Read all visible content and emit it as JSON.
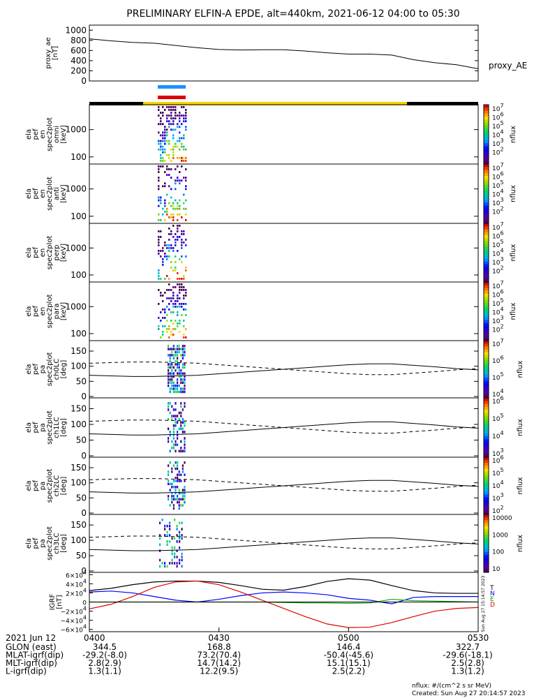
{
  "title": "PRELIMINARY ELFIN-A EPDE, alt=440km, 2021-06-12 04:00 to 05:30",
  "colors": {
    "blue_bar": "#1e90ff",
    "red_bar": "#dd0000",
    "science_yellow": "#f5d300",
    "axis": "#000000"
  },
  "chart_data": [
    {
      "type": "line",
      "ylabel_lines": [
        "proxy_ae",
        "[nT]"
      ],
      "series_label": "proxy_AE",
      "yticks": [
        "1000",
        "800",
        "600",
        "400",
        "200",
        "0"
      ],
      "ylim": [
        0,
        1100
      ],
      "x_minutes": [
        0,
        5,
        10,
        15,
        20,
        25,
        30,
        35,
        40,
        45,
        50,
        55,
        60,
        65,
        70,
        75,
        80,
        85,
        90
      ],
      "values": [
        830,
        790,
        760,
        745,
        700,
        655,
        620,
        610,
        615,
        615,
        590,
        555,
        530,
        530,
        510,
        420,
        360,
        320,
        240
      ]
    },
    {
      "type": "heatmap",
      "panels": [
        {
          "ylabel_lines": [
            "ela",
            "pef",
            "en",
            "spec2plot",
            "omni",
            "[keV]"
          ],
          "yticks": [
            "1000",
            "100"
          ]
        },
        {
          "ylabel_lines": [
            "ela",
            "pef",
            "en",
            "spec2plot",
            "anti",
            "[keV]"
          ],
          "yticks": [
            "1000",
            "100"
          ]
        },
        {
          "ylabel_lines": [
            "ela",
            "pef",
            "en",
            "spec2plot",
            "perp",
            "[keV]"
          ],
          "yticks": [
            "1000",
            "100"
          ]
        },
        {
          "ylabel_lines": [
            "ela",
            "pef",
            "en",
            "spec2plot",
            "para",
            "[keV]"
          ],
          "yticks": [
            "1000",
            "100"
          ]
        }
      ],
      "colorbar_label": "nflux",
      "colorbar_ticks": [
        "10^7",
        "10^6",
        "10^5",
        "10^4",
        "10^3",
        "10^2"
      ]
    },
    {
      "type": "heatmap",
      "panels": [
        {
          "ylabel_lines": [
            "ela",
            "pef",
            "pa",
            "spec2plot",
            "ch0LC",
            "[deg]"
          ],
          "yticks": [
            "150",
            "100",
            "50",
            "0"
          ],
          "cb_ticks": [
            "10^7",
            "10^6",
            "10^5",
            "10^4"
          ]
        },
        {
          "ylabel_lines": [
            "ela",
            "pef",
            "pa",
            "spec2plot",
            "ch1LC",
            "[deg]"
          ],
          "yticks": [
            "150",
            "100",
            "50",
            "0"
          ],
          "cb_ticks": [
            "10^6",
            "10^5",
            "10^4",
            "10^3"
          ]
        },
        {
          "ylabel_lines": [
            "ela",
            "pef",
            "pa",
            "spec2plot",
            "ch2LC",
            "[deg]"
          ],
          "yticks": [
            "150",
            "100",
            "50",
            "0"
          ],
          "cb_ticks": [
            "10^6",
            "10^5",
            "10^4",
            "10^3",
            "10^2"
          ]
        },
        {
          "ylabel_lines": [
            "ela",
            "pef",
            "pa",
            "spec2plot",
            "ch3LC",
            "[deg]"
          ],
          "yticks": [
            "150",
            "100",
            "50",
            "0"
          ],
          "cb_ticks": [
            "10000",
            "1000",
            "100",
            "10"
          ]
        }
      ],
      "colorbar_label": "nflux",
      "loss_cone_deg": [
        70,
        68,
        66,
        66,
        68,
        70,
        75,
        80,
        85,
        90,
        95,
        100,
        105,
        108,
        108,
        103,
        98,
        92,
        88
      ],
      "anti_loss_cone_deg": [
        110,
        112,
        114,
        114,
        112,
        110,
        105,
        100,
        95,
        90,
        85,
        80,
        75,
        72,
        72,
        77,
        82,
        88,
        92
      ]
    },
    {
      "type": "line",
      "ylabel_lines": [
        "IGRF",
        "[nT]"
      ],
      "yticks": [
        "6×10^4",
        "4×10^4",
        "2×10^4",
        "0",
        "−2×10^4",
        "−4×10^4",
        "−6×10^4"
      ],
      "ylim": [
        -65000,
        65000
      ],
      "x_minutes": [
        0,
        5,
        10,
        15,
        20,
        25,
        30,
        35,
        40,
        45,
        50,
        55,
        60,
        65,
        70,
        75,
        80,
        85,
        90
      ],
      "series": [
        {
          "name": "T",
          "color": "#000000",
          "values": [
            25000,
            30000,
            38000,
            44000,
            46000,
            46000,
            43000,
            36000,
            28000,
            26000,
            34000,
            45000,
            51000,
            48000,
            36000,
            25000,
            20000,
            19000,
            19000
          ]
        },
        {
          "name": "N",
          "color": "#0000ff",
          "values": [
            22000,
            24000,
            20000,
            12000,
            4000,
            0,
            6000,
            14000,
            20000,
            22000,
            20000,
            16000,
            8000,
            4000,
            -4000,
            10000,
            12000,
            12000,
            12000
          ]
        },
        {
          "name": "E",
          "color": "#00aa00",
          "values": [
            0,
            0,
            0,
            0,
            0,
            0,
            0,
            0,
            0,
            -1000,
            -2000,
            -2000,
            -3000,
            -2000,
            6000,
            3000,
            2000,
            1000,
            0
          ]
        },
        {
          "name": "D",
          "color": "#dd0000",
          "values": [
            -15000,
            -5000,
            12000,
            32000,
            44000,
            46000,
            38000,
            22000,
            4000,
            -14000,
            -32000,
            -48000,
            -56000,
            -55000,
            -45000,
            -32000,
            -20000,
            -14000,
            -12000
          ]
        }
      ]
    }
  ],
  "time_axis": {
    "ticks": [
      "0400",
      "0430",
      "0500",
      "0530"
    ],
    "date": "2021 Jun 12"
  },
  "footer_rows": [
    {
      "label": "GLON (east)",
      "values": [
        "344.5",
        "168.8",
        "146.4",
        "322.7"
      ]
    },
    {
      "label": "MLAT-igrf(dip)",
      "values": [
        "-29.2(-8.0)",
        "73.2(70.4)",
        "-50.4(-45.6)",
        "-29.6(-18.1)"
      ]
    },
    {
      "label": "MLT-igrf(dip)",
      "values": [
        "2.8(2.9)",
        "14.7(14.2)",
        "15.1(15.1)",
        "2.5(2.8)"
      ]
    },
    {
      "label": "L-igrf(dip)",
      "values": [
        "1.3(1.1)",
        "12.2(9.5)",
        "2.5(2.2)",
        "1.3(1.2)"
      ]
    }
  ],
  "footnote_units": "nflux: #/(cm^2 s sr MeV)",
  "footnote_created": "Created: Sun Aug 27 20:14:57 2023",
  "side_stamp": "Sun Aug 27 15:14:57 2023"
}
